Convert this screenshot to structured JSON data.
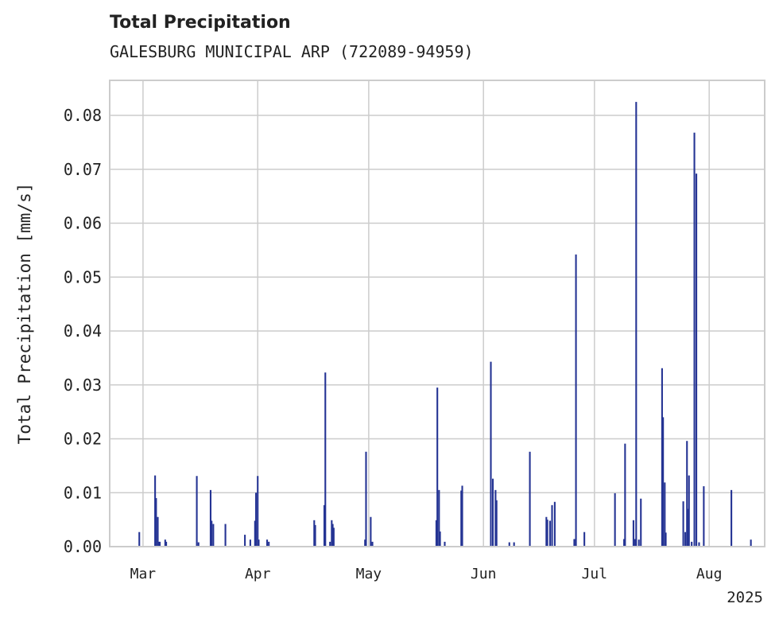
{
  "title": "Total Precipitation",
  "subtitle": "GALESBURG MUNICIPAL ARP (722089-94959)",
  "colors": {
    "bars": "#253494",
    "grid": "#cccccc",
    "axis": "#cccccc",
    "text": "#222222"
  },
  "chart_data": {
    "type": "bar",
    "title": "Total Precipitation",
    "subtitle": "GALESBURG MUNICIPAL ARP (722089-94959)",
    "xlabel": "",
    "ylabel": "Total Precipitation [mm/s]",
    "xlim": [
      "2025-02-20",
      "2025-08-16"
    ],
    "ylim": [
      0,
      0.0865
    ],
    "grid": true,
    "legend": "none",
    "x_ticks": [
      {
        "date": "2025-03-01",
        "label": "Mar"
      },
      {
        "date": "2025-04-01",
        "label": "Apr"
      },
      {
        "date": "2025-05-01",
        "label": "May"
      },
      {
        "date": "2025-06-01",
        "label": "Jun"
      },
      {
        "date": "2025-07-01",
        "label": "Jul"
      },
      {
        "date": "2025-08-01",
        "label": "Aug"
      }
    ],
    "x_offset_label": "2025",
    "y_ticks": [
      0.0,
      0.01,
      0.02,
      0.03,
      0.04,
      0.05,
      0.06,
      0.07,
      0.08
    ],
    "y_tick_labels": [
      "0.00",
      "0.01",
      "0.02",
      "0.03",
      "0.04",
      "0.05",
      "0.06",
      "0.07",
      "0.08"
    ],
    "x": [
      "2025-02-28",
      "2025-03-04",
      "2025-03-04",
      "2025-03-05",
      "2025-03-05",
      "2025-03-05",
      "2025-03-07",
      "2025-03-07",
      "2025-03-15",
      "2025-03-16",
      "2025-03-19",
      "2025-03-19",
      "2025-03-20",
      "2025-03-23",
      "2025-03-28",
      "2025-03-30",
      "2025-03-31",
      "2025-03-31",
      "2025-04-01",
      "2025-04-01",
      "2025-04-03",
      "2025-04-04",
      "2025-04-16",
      "2025-04-16",
      "2025-04-19",
      "2025-04-19",
      "2025-04-20",
      "2025-04-21",
      "2025-04-21",
      "2025-04-21",
      "2025-04-30",
      "2025-04-30",
      "2025-05-01",
      "2025-05-02",
      "2025-05-19",
      "2025-05-19",
      "2025-05-20",
      "2025-05-20",
      "2025-05-21",
      "2025-05-26",
      "2025-05-26",
      "2025-06-03",
      "2025-06-03",
      "2025-06-04",
      "2025-06-04",
      "2025-06-08",
      "2025-06-09",
      "2025-06-13",
      "2025-06-18",
      "2025-06-18",
      "2025-06-19",
      "2025-06-19",
      "2025-06-20",
      "2025-06-25",
      "2025-06-26",
      "2025-06-28",
      "2025-07-06",
      "2025-07-09",
      "2025-07-09",
      "2025-07-11",
      "2025-07-12",
      "2025-07-12",
      "2025-07-13",
      "2025-07-13",
      "2025-07-19",
      "2025-07-19",
      "2025-07-20",
      "2025-07-20",
      "2025-07-25",
      "2025-07-25",
      "2025-07-26",
      "2025-07-26",
      "2025-07-26",
      "2025-07-27",
      "2025-07-28",
      "2025-07-28",
      "2025-07-29",
      "2025-07-30",
      "2025-08-07",
      "2025-08-12"
    ],
    "values": [
      0.0027,
      0.0132,
      0.009,
      0.0055,
      0.0009,
      0.0009,
      0.0013,
      0.0009,
      0.0131,
      0.0008,
      0.0105,
      0.0048,
      0.0042,
      0.0042,
      0.0022,
      0.0013,
      0.0048,
      0.01,
      0.0131,
      0.0013,
      0.0013,
      0.0009,
      0.0049,
      0.004,
      0.0077,
      0.0323,
      0.0009,
      0.0049,
      0.0042,
      0.0035,
      0.0013,
      0.0176,
      0.0055,
      0.0009,
      0.0049,
      0.0295,
      0.0105,
      0.0028,
      0.0009,
      0.0104,
      0.0113,
      0.0126,
      0.0343,
      0.0105,
      0.0086,
      0.0008,
      0.0008,
      0.0176,
      0.0055,
      0.005,
      0.0077,
      0.0048,
      0.0083,
      0.0014,
      0.0542,
      0.0027,
      0.0099,
      0.0014,
      0.0191,
      0.0049,
      0.0014,
      0.0825,
      0.0089,
      0.0013,
      0.0331,
      0.024,
      0.0119,
      0.0026,
      0.0027,
      0.0084,
      0.007,
      0.0132,
      0.0196,
      0.0009,
      0.0692,
      0.0768,
      0.0008,
      0.0112,
      0.0105,
      0.0013
    ]
  }
}
